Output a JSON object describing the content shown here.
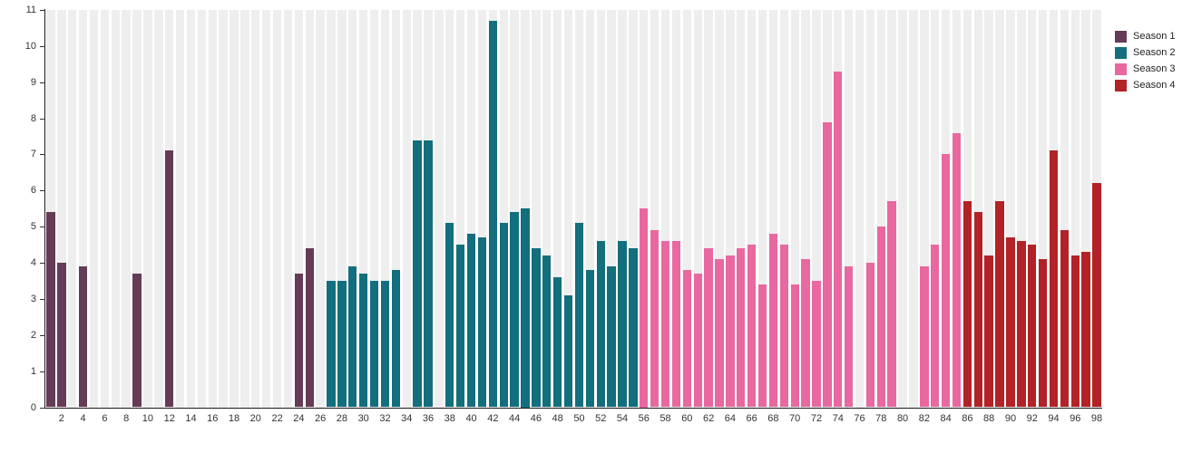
{
  "chart_data": {
    "type": "bar",
    "title": "",
    "xlabel": "",
    "ylabel": "",
    "x_slots": 98,
    "ylim": [
      0,
      11
    ],
    "y_ticks": [
      0,
      1,
      2,
      3,
      4,
      5,
      6,
      7,
      8,
      9,
      10,
      11
    ],
    "x_tick_labels": [
      2,
      4,
      6,
      8,
      10,
      12,
      14,
      16,
      18,
      20,
      22,
      24,
      26,
      28,
      30,
      32,
      34,
      36,
      38,
      40,
      42,
      44,
      46,
      48,
      50,
      52,
      54,
      56,
      58,
      60,
      62,
      64,
      66,
      68,
      70,
      72,
      74,
      76,
      78,
      80,
      82,
      84,
      86,
      88,
      90,
      92,
      94,
      96,
      98
    ],
    "grid": "vertical-episode-bands",
    "legend_position": "top-right-outside",
    "series": [
      {
        "name": "Season 1",
        "color": "#663B58",
        "points": [
          [
            1,
            5.4
          ],
          [
            2,
            4.0
          ],
          [
            4,
            3.9
          ],
          [
            9,
            3.7
          ],
          [
            12,
            7.1
          ],
          [
            24,
            3.7
          ],
          [
            25,
            4.4
          ]
        ]
      },
      {
        "name": "Season 2",
        "color": "#136E7D",
        "points": [
          [
            27,
            3.5
          ],
          [
            28,
            3.5
          ],
          [
            29,
            3.9
          ],
          [
            30,
            3.7
          ],
          [
            31,
            3.5
          ],
          [
            32,
            3.5
          ],
          [
            33,
            3.8
          ],
          [
            35,
            7.4
          ],
          [
            36,
            7.4
          ],
          [
            38,
            5.1
          ],
          [
            39,
            4.5
          ],
          [
            40,
            4.8
          ],
          [
            41,
            4.7
          ],
          [
            42,
            10.7
          ],
          [
            43,
            5.1
          ],
          [
            44,
            5.4
          ],
          [
            45,
            5.5
          ],
          [
            46,
            4.4
          ],
          [
            47,
            4.2
          ],
          [
            48,
            3.6
          ],
          [
            49,
            3.1
          ],
          [
            50,
            5.1
          ],
          [
            51,
            3.8
          ],
          [
            52,
            4.6
          ],
          [
            53,
            3.9
          ],
          [
            54,
            4.6
          ],
          [
            55,
            4.4
          ]
        ]
      },
      {
        "name": "Season 3",
        "color": "#E8689F",
        "points": [
          [
            56,
            5.5
          ],
          [
            57,
            4.9
          ],
          [
            58,
            4.6
          ],
          [
            59,
            4.6
          ],
          [
            60,
            3.8
          ],
          [
            61,
            3.7
          ],
          [
            62,
            4.4
          ],
          [
            63,
            4.1
          ],
          [
            64,
            4.2
          ],
          [
            65,
            4.4
          ],
          [
            66,
            4.5
          ],
          [
            67,
            3.4
          ],
          [
            68,
            4.8
          ],
          [
            69,
            4.5
          ],
          [
            70,
            3.4
          ],
          [
            71,
            4.1
          ],
          [
            72,
            3.5
          ],
          [
            73,
            7.9
          ],
          [
            74,
            9.3
          ],
          [
            75,
            3.9
          ],
          [
            77,
            4.0
          ],
          [
            78,
            5.0
          ],
          [
            79,
            5.7
          ],
          [
            82,
            3.9
          ],
          [
            83,
            4.5
          ],
          [
            84,
            7.0
          ],
          [
            85,
            7.6
          ]
        ]
      },
      {
        "name": "Season 4",
        "color": "#B22226",
        "points": [
          [
            86,
            5.7
          ],
          [
            87,
            5.4
          ],
          [
            88,
            4.2
          ],
          [
            89,
            5.7
          ],
          [
            90,
            4.7
          ],
          [
            91,
            4.6
          ],
          [
            92,
            4.5
          ],
          [
            93,
            4.1
          ],
          [
            94,
            7.1
          ],
          [
            95,
            4.9
          ],
          [
            96,
            4.2
          ],
          [
            97,
            4.3
          ],
          [
            98,
            6.2
          ]
        ]
      }
    ],
    "style": {
      "band_color": "#eeeeee",
      "gap_color": "#ffffff",
      "axis_color": "#1a1a1a",
      "tick_color": "#333333",
      "label_color": "#333333"
    }
  },
  "legend": {
    "items": [
      {
        "label": "Season 1"
      },
      {
        "label": "Season 2"
      },
      {
        "label": "Season 3"
      },
      {
        "label": "Season 4"
      }
    ]
  }
}
